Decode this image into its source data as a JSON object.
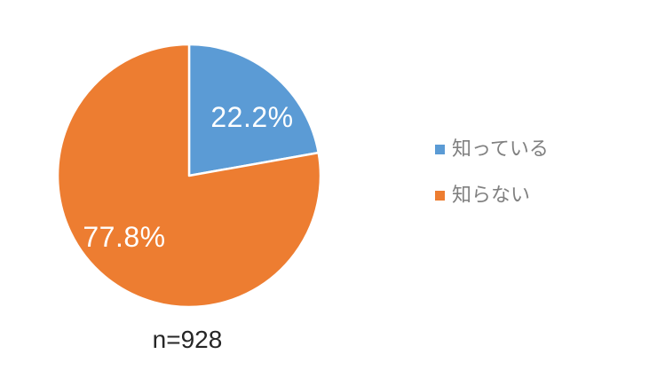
{
  "chart_data": {
    "type": "pie",
    "categories": [
      "知っている",
      "知らない"
    ],
    "values": [
      22.2,
      77.8
    ],
    "slice_labels": [
      "22.2%",
      "77.8%"
    ],
    "colors": [
      "#5B9BD5",
      "#ED7D31"
    ],
    "start_angle_deg": 0,
    "direction": "clockwise",
    "legend_position": "right",
    "slice_label_color": "#FFFFFF",
    "legend_text_color": "#808080",
    "note": "n=928",
    "note_color": "#262626",
    "background": "#FFFFFF"
  }
}
